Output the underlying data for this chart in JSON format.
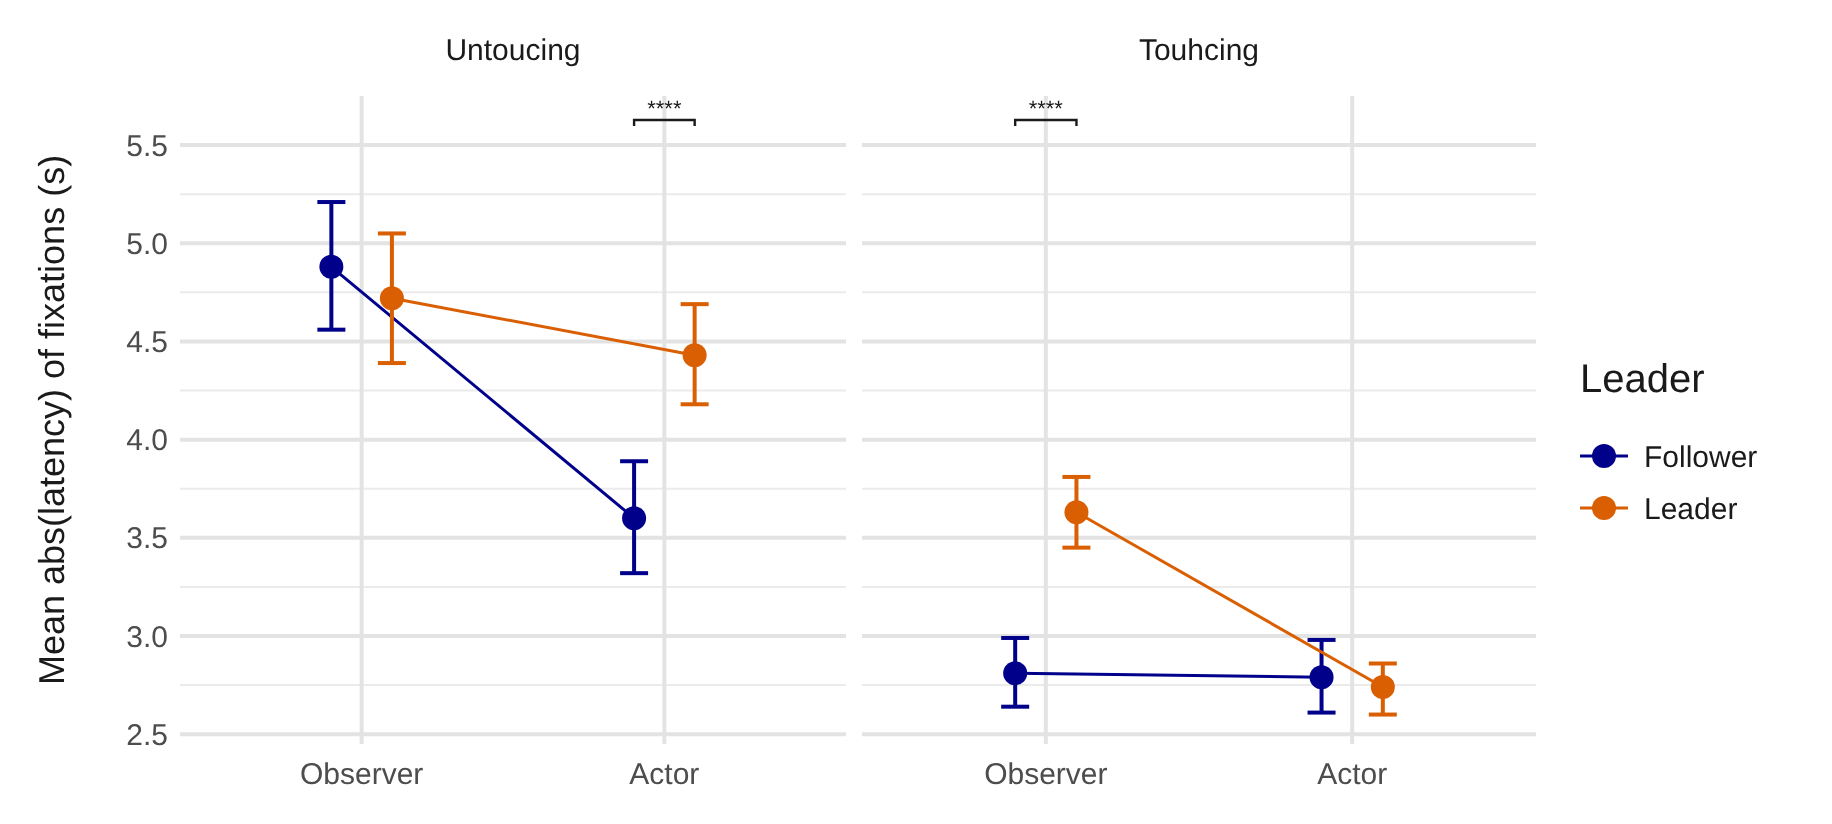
{
  "chart_data": [
    {
      "type": "line",
      "title": "Untoucing",
      "ylabel": "Mean abs(latency) of fixations (s)",
      "categories": [
        "Observer",
        "Actor"
      ],
      "ylim": [
        2.45,
        5.75
      ],
      "yticks": [
        2.5,
        {
          "value": 3,
          "label": "3.0"
        },
        3.5,
        {
          "value": 4,
          "label": "4.0"
        },
        4.5,
        {
          "value": 5,
          "label": "5.0"
        },
        5.5
      ],
      "grid": true,
      "marker": "circle",
      "legend": false,
      "series": [
        {
          "color": "#00008b",
          "values": [
            4.88,
            3.6
          ],
          "errors": [
            [
              4.56,
              5.21
            ],
            [
              3.32,
              3.89
            ]
          ]
        },
        {
          "color": "#d95f02",
          "values": [
            4.72,
            4.43
          ],
          "errors": [
            [
              4.39,
              5.05
            ],
            [
              4.18,
              4.69
            ]
          ]
        }
      ],
      "annotations": [
        "****"
      ]
    },
    {
      "type": "line",
      "title": "Touhcing",
      "categories": [
        "Observer",
        "Actor"
      ],
      "ylim": [
        2.45,
        5.75
      ],
      "yticks": [
        2.5,
        3,
        3.5,
        4,
        4.5,
        5,
        5.5
      ],
      "tick_labels": "x",
      "grid": true,
      "marker": "circle",
      "legend": "right",
      "legend_title": "Leader",
      "series": [
        {
          "name": "Follower",
          "color": "#00008b",
          "values": [
            2.81,
            2.79
          ],
          "errors": [
            [
              2.64,
              2.99
            ],
            [
              2.61,
              2.98
            ]
          ]
        },
        {
          "name": "Leader",
          "color": "#d95f02",
          "values": [
            3.63,
            2.74
          ],
          "errors": [
            [
              3.45,
              3.81
            ],
            [
              2.6,
              2.86
            ]
          ]
        }
      ],
      "annotations": [
        "****"
      ]
    }
  ]
}
